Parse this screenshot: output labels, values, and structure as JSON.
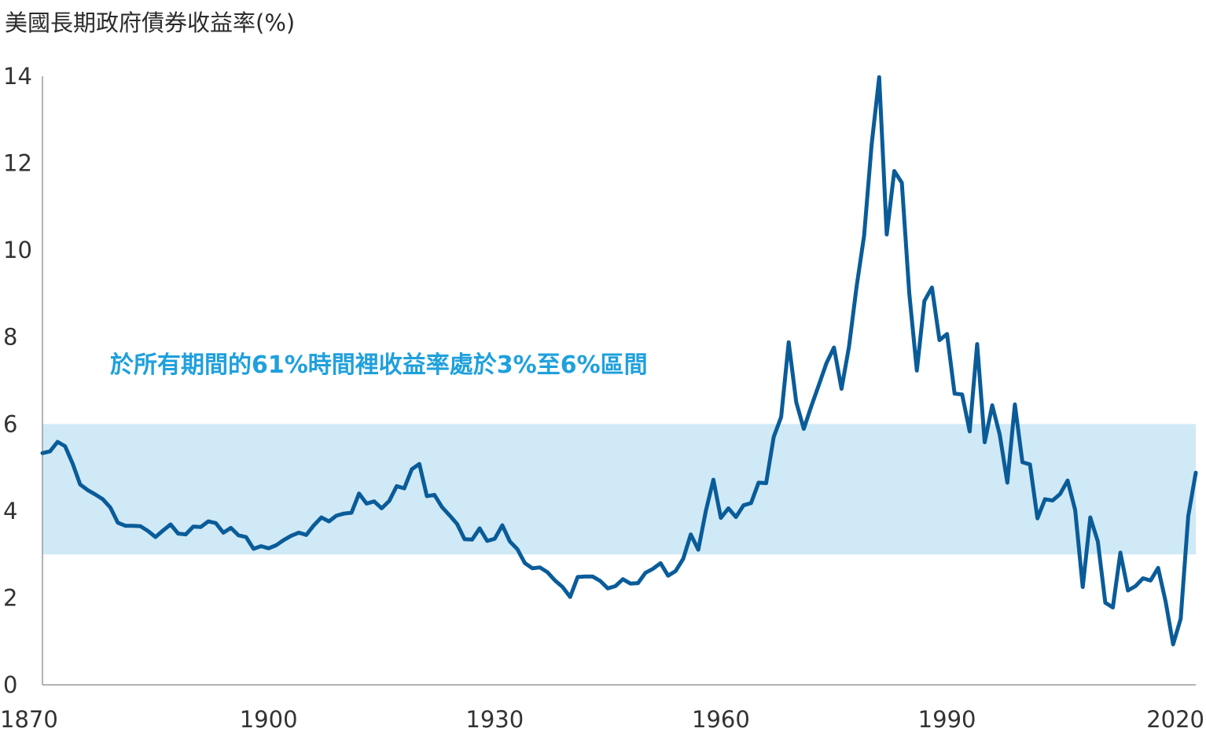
{
  "chart_data": {
    "type": "line",
    "title": "美國長期政府債券收益率(%)",
    "xlabel": "",
    "ylabel": "",
    "xlim": [
      1870,
      2023
    ],
    "ylim": [
      0,
      14
    ],
    "x_ticks": [
      1870,
      1900,
      1930,
      1960,
      1990,
      2020
    ],
    "y_ticks": [
      0,
      2,
      4,
      6,
      8,
      10,
      12,
      14
    ],
    "grid": false,
    "band": {
      "from": 3,
      "to": 6,
      "color": "#d0e9f6"
    },
    "annotations": [
      {
        "text": "於所有期間的61%時間裡收益率處於3%至6%區間",
        "color": "#1fa0dc"
      }
    ],
    "line_color": "#0a5c99",
    "series": [
      {
        "name": "",
        "x": [
          1870,
          1871,
          1872,
          1873,
          1874,
          1875,
          1876,
          1877,
          1878,
          1879,
          1880,
          1881,
          1882,
          1883,
          1884,
          1885,
          1886,
          1887,
          1888,
          1889,
          1890,
          1891,
          1892,
          1893,
          1894,
          1895,
          1896,
          1897,
          1898,
          1899,
          1900,
          1901,
          1902,
          1903,
          1904,
          1905,
          1906,
          1907,
          1908,
          1909,
          1910,
          1911,
          1912,
          1913,
          1914,
          1915,
          1916,
          1917,
          1918,
          1919,
          1920,
          1921,
          1922,
          1923,
          1924,
          1925,
          1926,
          1927,
          1928,
          1929,
          1930,
          1931,
          1932,
          1933,
          1934,
          1935,
          1936,
          1937,
          1938,
          1939,
          1940,
          1941,
          1942,
          1943,
          1944,
          1945,
          1946,
          1947,
          1948,
          1949,
          1950,
          1951,
          1952,
          1953,
          1954,
          1955,
          1956,
          1957,
          1958,
          1959,
          1960,
          1961,
          1962,
          1963,
          1964,
          1965,
          1966,
          1967,
          1968,
          1969,
          1970,
          1971,
          1972,
          1973,
          1974,
          1975,
          1976,
          1977,
          1978,
          1979,
          1980,
          1981,
          1982,
          1983,
          1984,
          1985,
          1986,
          1987,
          1988,
          1989,
          1990,
          1991,
          1992,
          1993,
          1994,
          1995,
          1996,
          1997,
          1998,
          1999,
          2000,
          2001,
          2002,
          2003,
          2004,
          2005,
          2006,
          2007,
          2008,
          2009,
          2010,
          2011,
          2012,
          2013,
          2014,
          2015,
          2016,
          2017,
          2018,
          2019,
          2020,
          2021,
          2022,
          2023
        ],
        "values": [
          5.33,
          5.37,
          5.59,
          5.49,
          5.09,
          4.61,
          4.48,
          4.38,
          4.27,
          4.08,
          3.73,
          3.66,
          3.66,
          3.65,
          3.54,
          3.4,
          3.55,
          3.69,
          3.48,
          3.46,
          3.64,
          3.63,
          3.76,
          3.72,
          3.5,
          3.61,
          3.44,
          3.4,
          3.13,
          3.19,
          3.14,
          3.21,
          3.33,
          3.43,
          3.5,
          3.45,
          3.67,
          3.85,
          3.76,
          3.89,
          3.94,
          3.96,
          4.4,
          4.17,
          4.22,
          4.06,
          4.23,
          4.57,
          4.52,
          4.96,
          5.08,
          4.34,
          4.37,
          4.09,
          3.9,
          3.7,
          3.35,
          3.34,
          3.6,
          3.31,
          3.36,
          3.67,
          3.3,
          3.12,
          2.8,
          2.68,
          2.7,
          2.59,
          2.4,
          2.25,
          2.02,
          2.48,
          2.49,
          2.49,
          2.39,
          2.22,
          2.27,
          2.43,
          2.33,
          2.34,
          2.58,
          2.67,
          2.8,
          2.51,
          2.62,
          2.9,
          3.46,
          3.11,
          4.0,
          4.72,
          3.84,
          4.06,
          3.86,
          4.13,
          4.18,
          4.65,
          4.64,
          5.7,
          6.16,
          7.88,
          6.5,
          5.89,
          6.41,
          6.9,
          7.4,
          7.76,
          6.81,
          7.78,
          9.15,
          10.33,
          12.43,
          13.98,
          10.36,
          11.82,
          11.55,
          9.0,
          7.23,
          8.83,
          9.14,
          7.93,
          8.07,
          6.7,
          6.68,
          5.83,
          7.84,
          5.58,
          6.43,
          5.75,
          4.65,
          6.45,
          5.12,
          5.07,
          3.83,
          4.27,
          4.24,
          4.39,
          4.7,
          4.02,
          2.25,
          3.85,
          3.3,
          1.89,
          1.78,
          3.04,
          2.17,
          2.27,
          2.45,
          2.4,
          2.69,
          1.92,
          0.93,
          1.52,
          3.88,
          4.88
        ]
      }
    ]
  }
}
